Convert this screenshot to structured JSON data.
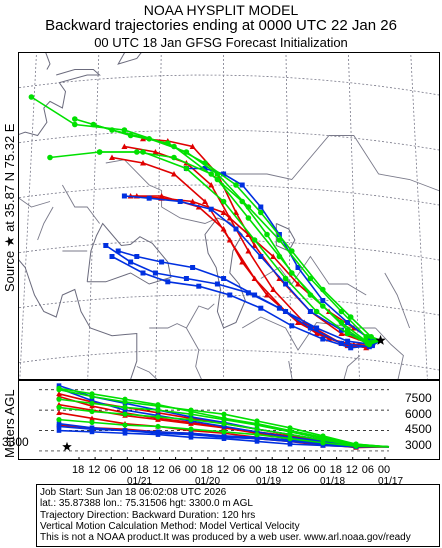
{
  "title": {
    "line1": "NOAA HYSPLIT MODEL",
    "line2": "Backward trajectories ending at 0000 UTC 22 Jan 26",
    "line3": "00 UTC 18 Jan    GFSG  Forecast Initialization"
  },
  "side_label": "Source ★ at   35.87 N   75.32 E",
  "alt_axis_label": "Meters AGL",
  "source_height_label": "3300",
  "alt_right_labels": [
    "7500",
    "6000",
    "4500",
    "3000"
  ],
  "time_ticks": [
    "18",
    "12",
    "06",
    "00",
    "18",
    "12",
    "06",
    "00",
    "18",
    "12",
    "06",
    "00",
    "18",
    "12",
    "06",
    "00",
    "18",
    "12",
    "06",
    "00"
  ],
  "date_labels": [
    "01/21",
    "01/20",
    "01/19",
    "01/18",
    "01/17"
  ],
  "info": {
    "line1": "Job Start: Sun Jan 18 06:02:08 UTC 2026",
    "line2": "lat.: 35.87388   lon.: 75.31506    hgt: 3300.0 m AGL",
    "line3": "Trajectory Direction: Backward       Duration: 120 hrs",
    "line4": "Vertical Motion Calculation Method: Model Vertical Velocity",
    "line5": "This is not a NOAA product.It was produced by a web user. www.arl.noaa.gov/ready"
  },
  "colors": {
    "red": "#e00000",
    "blue": "#0030e0",
    "green": "#00e000"
  },
  "chart_data": [
    {
      "type": "line",
      "title": "Backward trajectories ending at 0000 UTC 22 Jan 26",
      "source": {
        "lat": 35.87,
        "lon": 75.32,
        "height_m_agl": 3300
      },
      "series": [
        {
          "color": "red",
          "lonlat": [
            [
              75.32,
              35.87
            ],
            [
              74,
              35.6
            ],
            [
              71,
              35.5
            ],
            [
              67,
              36
            ],
            [
              62,
              37.5
            ],
            [
              57,
              40
            ],
            [
              53,
              43
            ],
            [
              50,
              46
            ],
            [
              46,
              48
            ],
            [
              40,
              49
            ],
            [
              35,
              49
            ]
          ]
        },
        {
          "color": "red",
          "lonlat": [
            [
              75.32,
              35.87
            ],
            [
              73.5,
              35.4
            ],
            [
              70,
              35.4
            ],
            [
              65,
              36.5
            ],
            [
              60,
              38.5
            ],
            [
              55,
              41.5
            ],
            [
              51,
              45
            ],
            [
              47,
              48.5
            ],
            [
              42,
              51
            ],
            [
              37,
              52
            ],
            [
              32,
              52.5
            ]
          ]
        },
        {
          "color": "red",
          "lonlat": [
            [
              75.32,
              35.87
            ],
            [
              73,
              35.2
            ],
            [
              69,
              35.6
            ],
            [
              63,
              37.5
            ],
            [
              58,
              40.5
            ],
            [
              54,
              44
            ],
            [
              51,
              47
            ],
            [
              48,
              50
            ],
            [
              44,
              52
            ],
            [
              39,
              53
            ],
            [
              34,
              53.5
            ]
          ]
        },
        {
          "color": "red",
          "lonlat": [
            [
              75.32,
              35.87
            ],
            [
              73,
              35.7
            ],
            [
              69,
              36.5
            ],
            [
              64,
              38.5
            ],
            [
              59,
              41.5
            ],
            [
              55,
              44.5
            ],
            [
              52,
              47.5
            ],
            [
              49,
              51
            ],
            [
              45,
              53.5
            ],
            [
              41,
              54
            ],
            [
              37,
              54.2
            ]
          ]
        },
        {
          "color": "red",
          "lonlat": [
            [
              75.32,
              35.87
            ],
            [
              73.8,
              36
            ],
            [
              71,
              37
            ],
            [
              67,
              38.5
            ],
            [
              62,
              41
            ],
            [
              58,
              43.5
            ],
            [
              54,
              45.5
            ],
            [
              50,
              47.5
            ],
            [
              45,
              48.5
            ],
            [
              40,
              48.8
            ],
            [
              36,
              49
            ]
          ]
        },
        {
          "color": "blue",
          "lonlat": [
            [
              75.32,
              35.87
            ],
            [
              74,
              35.5
            ],
            [
              70,
              35.8
            ],
            [
              65,
              37
            ],
            [
              60,
              38.5
            ],
            [
              55,
              40
            ],
            [
              50,
              41.5
            ],
            [
              45,
              42.5
            ],
            [
              40,
              43
            ],
            [
              36,
              43.5
            ],
            [
              33,
              44
            ]
          ]
        },
        {
          "color": "blue",
          "lonlat": [
            [
              75.32,
              35.87
            ],
            [
              73.5,
              35.3
            ],
            [
              69,
              35.6
            ],
            [
              64,
              37
            ],
            [
              59,
              38.8
            ],
            [
              54,
              40.2
            ],
            [
              49,
              41
            ],
            [
              44,
              41.5
            ],
            [
              39,
              42
            ],
            [
              35,
              43
            ],
            [
              31,
              44.5
            ]
          ]
        },
        {
          "color": "blue",
          "lonlat": [
            [
              75.32,
              35.87
            ],
            [
              73,
              35.8
            ],
            [
              69,
              36.8
            ],
            [
              64,
              38.5
            ],
            [
              60,
              41
            ],
            [
              56,
              43.5
            ],
            [
              52,
              46
            ],
            [
              48,
              47.8
            ],
            [
              43,
              48.5
            ],
            [
              38,
              48.8
            ],
            [
              34,
              49
            ]
          ]
        },
        {
          "color": "blue",
          "lonlat": [
            [
              75.32,
              35.87
            ],
            [
              73.5,
              36
            ],
            [
              70,
              37.5
            ],
            [
              66,
              39.5
            ],
            [
              62,
              42.5
            ],
            [
              59,
              45.5
            ],
            [
              56,
              48
            ],
            [
              53,
              50
            ],
            [
              50,
              51
            ],
            [
              47,
              51.5
            ],
            [
              44,
              51.5
            ]
          ]
        },
        {
          "color": "blue",
          "lonlat": [
            [
              75.32,
              35.87
            ],
            [
              74,
              35.4
            ],
            [
              70.5,
              35.2
            ],
            [
              66,
              36
            ],
            [
              61,
              37.2
            ],
            [
              56,
              38.8
            ],
            [
              51,
              40
            ],
            [
              46,
              40.8
            ],
            [
              41,
              41.2
            ],
            [
              37,
              42
            ],
            [
              32,
              43.5
            ]
          ]
        },
        {
          "color": "green",
          "lonlat": [
            [
              75.32,
              35.87
            ],
            [
              73.5,
              35.5
            ],
            [
              70,
              36.5
            ],
            [
              65,
              38.5
            ],
            [
              60,
              41.5
            ],
            [
              55,
              45
            ],
            [
              50,
              48.5
            ],
            [
              44,
              51.5
            ],
            [
              37,
              53
            ],
            [
              30,
              53
            ],
            [
              22,
              52.5
            ]
          ]
        },
        {
          "color": "green",
          "lonlat": [
            [
              75.32,
              35.87
            ],
            [
              73,
              35.8
            ],
            [
              69,
              37.5
            ],
            [
              64,
              40
            ],
            [
              59,
              43.5
            ],
            [
              54,
              47
            ],
            [
              49,
              50.5
            ],
            [
              42,
              53.5
            ],
            [
              34,
              55
            ],
            [
              26,
              55.5
            ],
            [
              19,
              58
            ]
          ]
        },
        {
          "color": "green",
          "lonlat": [
            [
              75.32,
              35.87
            ],
            [
              73,
              36.2
            ],
            [
              69,
              38.5
            ],
            [
              64,
              41.5
            ],
            [
              59,
              45
            ],
            [
              54,
              48
            ],
            [
              49,
              51
            ],
            [
              44,
              53
            ],
            [
              38,
              54.2
            ],
            [
              32,
              55
            ],
            [
              26,
              56
            ]
          ]
        },
        {
          "color": "green",
          "lonlat": [
            [
              75.32,
              35.87
            ],
            [
              73.8,
              36.2
            ],
            [
              70.5,
              38
            ],
            [
              66,
              40.5
            ],
            [
              61,
              44
            ],
            [
              56,
              47.5
            ],
            [
              52,
              50
            ],
            [
              47,
              52
            ],
            [
              41,
              53.8
            ],
            [
              35,
              54.5
            ],
            [
              29,
              55.5
            ]
          ]
        },
        {
          "color": "green",
          "lonlat": [
            [
              75.32,
              35.87
            ],
            [
              73.2,
              35.6
            ],
            [
              70,
              36.8
            ],
            [
              66,
              39
            ],
            [
              61,
              42
            ],
            [
              57,
              45.5
            ],
            [
              53,
              48.5
            ],
            [
              48,
              51
            ],
            [
              42,
              52.5
            ],
            [
              36,
              53
            ],
            [
              30,
              53
            ]
          ]
        }
      ]
    },
    {
      "type": "line",
      "ylabel": "Meters AGL",
      "x_hours_before_arrival": [
        0,
        12,
        24,
        36,
        48,
        60,
        72,
        84,
        96,
        108,
        120
      ],
      "series": [
        {
          "color": "red",
          "heights_m": [
            3300,
            3350,
            3600,
            3900,
            4300,
            4700,
            5000,
            5300,
            5600,
            6000,
            6400
          ]
        },
        {
          "color": "red",
          "heights_m": [
            3300,
            3400,
            3700,
            4100,
            4400,
            4700,
            5100,
            5400,
            5800,
            6300,
            7000
          ]
        },
        {
          "color": "red",
          "heights_m": [
            3300,
            3250,
            3500,
            3800,
            4000,
            4300,
            4500,
            4800,
            5000,
            5400,
            5800
          ]
        },
        {
          "color": "red",
          "heights_m": [
            3300,
            3300,
            3400,
            3700,
            3900,
            4100,
            4300,
            4400,
            4600,
            4700,
            4900
          ]
        },
        {
          "color": "red",
          "heights_m": [
            3300,
            3450,
            3800,
            4200,
            4600,
            5000,
            5400,
            5800,
            6200,
            6600,
            7200
          ]
        },
        {
          "color": "blue",
          "heights_m": [
            3300,
            3350,
            3600,
            3800,
            4000,
            4100,
            4300,
            4400,
            4500,
            4700,
            5000
          ]
        },
        {
          "color": "blue",
          "heights_m": [
            3300,
            3300,
            3400,
            3500,
            3700,
            3900,
            4000,
            4200,
            4300,
            4400,
            4500
          ]
        },
        {
          "color": "blue",
          "heights_m": [
            3300,
            3400,
            3700,
            4000,
            4400,
            4800,
            5200,
            5600,
            6000,
            6700,
            7600
          ]
        },
        {
          "color": "blue",
          "heights_m": [
            3300,
            3350,
            3500,
            3700,
            3900,
            4000,
            4200,
            4300,
            4500,
            4600,
            4800
          ]
        },
        {
          "color": "blue",
          "heights_m": [
            3300,
            3450,
            3800,
            4200,
            4600,
            5100,
            5500,
            6000,
            6500,
            7000,
            7800
          ]
        },
        {
          "color": "green",
          "heights_m": [
            3300,
            3500,
            4100,
            4700,
            5200,
            5700,
            6000,
            6300,
            6600,
            7000,
            7500
          ]
        },
        {
          "color": "green",
          "heights_m": [
            3300,
            3450,
            3900,
            4400,
            4900,
            5300,
            5700,
            6000,
            6200,
            6500,
            6800
          ]
        },
        {
          "color": "green",
          "heights_m": [
            3300,
            3400,
            3800,
            4200,
            4600,
            5000,
            5300,
            5500,
            5700,
            5900,
            6200
          ]
        },
        {
          "color": "green",
          "heights_m": [
            3300,
            3500,
            4000,
            4500,
            5000,
            5400,
            5900,
            6400,
            6800,
            7200,
            7600
          ]
        },
        {
          "color": "green",
          "heights_m": [
            3300,
            3350,
            3600,
            3900,
            4200,
            4400,
            4600,
            4800,
            4900,
            5100,
            5300
          ]
        }
      ]
    }
  ]
}
